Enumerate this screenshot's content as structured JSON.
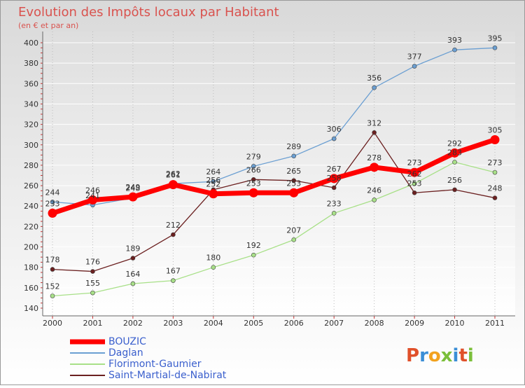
{
  "chart_data": {
    "type": "line",
    "title": "Evolution des Impôts locaux par Habitant",
    "subtitle": "(en € et par an)",
    "xlabel": "",
    "ylabel": "",
    "ylim": [
      140,
      400
    ],
    "yticks": [
      140,
      160,
      180,
      200,
      220,
      240,
      260,
      280,
      300,
      320,
      340,
      360,
      380,
      400
    ],
    "categories": [
      "2000",
      "2001",
      "2002",
      "2003",
      "2004",
      "2005",
      "2006",
      "2007",
      "2008",
      "2009",
      "2010",
      "2011"
    ],
    "grid": true,
    "legend_position": "bottom-left",
    "watermark": "Proxiti",
    "series": [
      {
        "name": "BOUZIC",
        "color": "#ff0000",
        "values": [
          233,
          246,
          249,
          261,
          252,
          253,
          253,
          267,
          278,
          273,
          292,
          305
        ]
      },
      {
        "name": "Daglan",
        "color": "#6b9fd2",
        "values": [
          244,
          241,
          248,
          262,
          264,
          279,
          289,
          306,
          356,
          377,
          393,
          395
        ]
      },
      {
        "name": "Florimont-Gaumier",
        "color": "#a8e088",
        "values": [
          152,
          155,
          164,
          167,
          180,
          192,
          207,
          233,
          246,
          262,
          283,
          273
        ]
      },
      {
        "name": "Saint-Martial-de-Nabirat",
        "color": "#6b2020",
        "values": [
          178,
          176,
          189,
          212,
          256,
          266,
          265,
          258,
          312,
          253,
          256,
          248
        ]
      }
    ]
  }
}
